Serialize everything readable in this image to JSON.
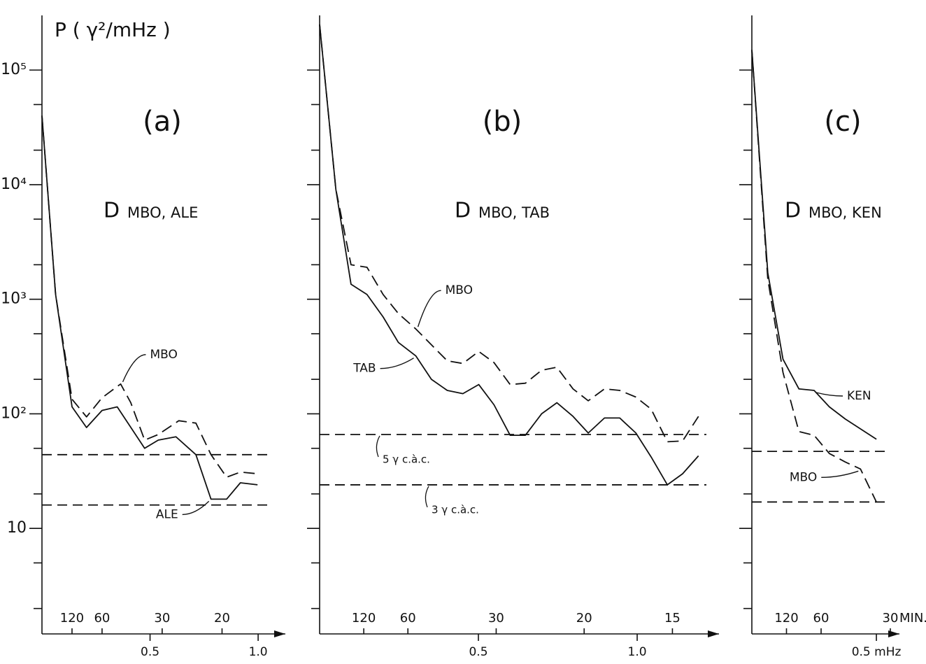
{
  "chart_data": [
    {
      "type": "line",
      "title": "(a)",
      "component": "D",
      "stations": "MBO, ALE",
      "ylabel": "P ( γ²/mHz )",
      "log_y": true,
      "ylim": [
        1.2,
        300000
      ],
      "yticks": [
        {
          "value": 10,
          "label": "10"
        },
        {
          "value": 100,
          "label": "10²"
        },
        {
          "value": 1000,
          "label": "10³"
        },
        {
          "value": 10000,
          "label": "10⁴"
        },
        {
          "value": 100000,
          "label": "10⁵"
        }
      ],
      "tick_labels": true,
      "minor_yticks": [
        2,
        5,
        20,
        50,
        200,
        500,
        2000,
        5000,
        20000,
        50000
      ],
      "xlim": [
        0,
        1.1
      ],
      "xticks": [
        0.5,
        {
          "value": 1,
          "label": "1.0"
        }
      ],
      "x2ticks": [
        {
          "value": 0.139,
          "label": "120"
        },
        {
          "value": 0.278,
          "label": "60"
        },
        {
          "value": 0.556,
          "label": "30"
        },
        {
          "value": 0.833,
          "label": "20"
        }
      ],
      "reference_lines": [
        {
          "value": 44
        },
        {
          "value": 16
        }
      ],
      "series": [
        {
          "name": "MBO",
          "color": "#111111",
          "style": "dashed",
          "x": [
            0,
            0.063,
            0.139,
            0.206,
            0.278,
            0.364,
            0.411,
            0.475,
            0.538,
            0.633,
            0.712,
            0.782,
            0.854,
            0.918,
            0.997
          ],
          "values": [
            40000,
            1100,
            134,
            94,
            138,
            182,
            125,
            59,
            66,
            87,
            83,
            44,
            28,
            31,
            30
          ]
        },
        {
          "name": "ALE",
          "color": "#111111",
          "style": "solid",
          "x": [
            0,
            0.063,
            0.139,
            0.206,
            0.278,
            0.348,
            0.475,
            0.538,
            0.62,
            0.712,
            0.782,
            0.854,
            0.918,
            0.997
          ],
          "values": [
            40000,
            1100,
            115,
            76,
            107,
            115,
            50,
            59,
            63,
            44,
            18,
            18,
            25,
            24
          ]
        }
      ]
    },
    {
      "type": "line",
      "title": "(b)",
      "component": "D",
      "stations": "MBO, TAB",
      "log_y": true,
      "ylim": [
        1.2,
        300000
      ],
      "yticks": [
        10,
        100,
        1000,
        10000,
        100000
      ],
      "tick_labels": false,
      "minor_yticks": [
        2,
        5,
        20,
        50,
        200,
        500,
        2000,
        5000,
        20000,
        50000
      ],
      "xlim": [
        0,
        1.24
      ],
      "xticks": [
        0.5,
        {
          "value": 1,
          "label": "1.0"
        }
      ],
      "x2ticks": [
        {
          "value": 0.139,
          "label": "120"
        },
        {
          "value": 0.278,
          "label": "60"
        },
        {
          "value": 0.556,
          "label": "30"
        },
        {
          "value": 0.833,
          "label": "20"
        },
        {
          "value": 1.111,
          "label": "15"
        }
      ],
      "reference_lines": [
        {
          "value": 66,
          "label": "5 γ c.à.c."
        },
        {
          "value": 24,
          "label": "3 γ c.à.c."
        }
      ],
      "series": [
        {
          "name": "MBO",
          "color": "#111111",
          "style": "dashed",
          "x": [
            0,
            0.051,
            0.099,
            0.149,
            0.2,
            0.248,
            0.303,
            0.352,
            0.402,
            0.451,
            0.501,
            0.549,
            0.6,
            0.648,
            0.699,
            0.747,
            0.798,
            0.846,
            0.897,
            0.945,
            0.996,
            1.044,
            1.095,
            1.143,
            1.193
          ],
          "values": [
            250000,
            9100,
            2000,
            1900,
            1100,
            750,
            550,
            400,
            290,
            275,
            350,
            280,
            180,
            185,
            240,
            255,
            165,
            130,
            165,
            160,
            140,
            110,
            57,
            58,
            95
          ]
        },
        {
          "name": "TAB",
          "color": "#111111",
          "style": "solid",
          "x": [
            0,
            0.051,
            0.099,
            0.149,
            0.2,
            0.248,
            0.303,
            0.352,
            0.402,
            0.451,
            0.501,
            0.549,
            0.6,
            0.648,
            0.699,
            0.747,
            0.798,
            0.846,
            0.897,
            0.945,
            0.996,
            1.044,
            1.095,
            1.143,
            1.193
          ],
          "values": [
            250000,
            9100,
            1350,
            1100,
            700,
            420,
            320,
            200,
            160,
            150,
            180,
            120,
            65,
            65,
            100,
            125,
            95,
            68,
            92,
            92,
            68,
            42,
            24,
            30,
            43
          ]
        }
      ]
    },
    {
      "type": "line",
      "title": "(c)",
      "component": "D",
      "stations": "MBO, KEN",
      "log_y": true,
      "ylim": [
        1.2,
        300000
      ],
      "yticks": [
        10,
        100,
        1000,
        10000,
        100000
      ],
      "tick_labels": false,
      "minor_yticks": [
        2,
        5,
        20,
        50,
        200,
        500,
        2000,
        5000,
        20000,
        50000
      ],
      "xlim": [
        0,
        0.57
      ],
      "xticks": [
        {
          "value": 0.5,
          "label": "0.5 mHz"
        }
      ],
      "x2ticks": [
        {
          "value": 0.139,
          "label": "120"
        },
        {
          "value": 0.278,
          "label": "60"
        },
        {
          "value": 0.556,
          "label": "30"
        }
      ],
      "x2label": "MIN.",
      "reference_lines": [
        {
          "value": 47
        },
        {
          "value": 17
        }
      ],
      "series": [
        {
          "name": "KEN",
          "color": "#111111",
          "style": "solid",
          "x": [
            0,
            0.064,
            0.125,
            0.189,
            0.25,
            0.311,
            0.375,
            0.5
          ],
          "values": [
            150000,
            1700,
            300,
            165,
            160,
            115,
            90,
            60
          ]
        },
        {
          "name": "MBO",
          "color": "#111111",
          "style": "dashed",
          "x": [
            0,
            0.064,
            0.125,
            0.189,
            0.25,
            0.311,
            0.375,
            0.436,
            0.5
          ],
          "values": [
            150000,
            1500,
            230,
            70,
            65,
            45,
            38,
            33,
            17
          ]
        }
      ]
    }
  ]
}
